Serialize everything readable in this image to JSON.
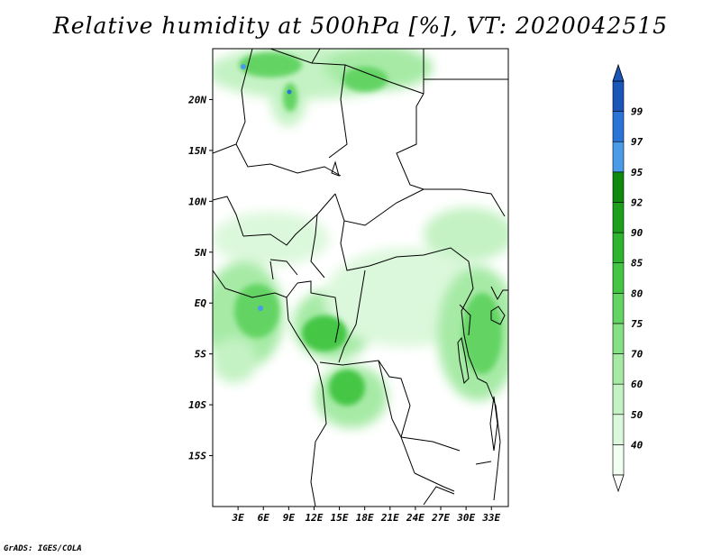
{
  "title": "Relative humidity at 500hPa [%], VT: 2020042515",
  "credit": "GrADS: IGES/COLA",
  "map": {
    "lon_range": [
      0,
      35
    ],
    "lat_range": [
      -20,
      25
    ],
    "lat_ticks": [
      {
        "value": 20,
        "label": "20N"
      },
      {
        "value": 15,
        "label": "15N"
      },
      {
        "value": 10,
        "label": "10N"
      },
      {
        "value": 5,
        "label": "5N"
      },
      {
        "value": 0,
        "label": "EQ"
      },
      {
        "value": -5,
        "label": "5S"
      },
      {
        "value": -10,
        "label": "10S"
      },
      {
        "value": -15,
        "label": "15S"
      }
    ],
    "lon_ticks": [
      {
        "value": 3,
        "label": "3E"
      },
      {
        "value": 6,
        "label": "6E"
      },
      {
        "value": 9,
        "label": "9E"
      },
      {
        "value": 12,
        "label": "12E"
      },
      {
        "value": 15,
        "label": "15E"
      },
      {
        "value": 18,
        "label": "18E"
      },
      {
        "value": 21,
        "label": "21E"
      },
      {
        "value": 24,
        "label": "24E"
      },
      {
        "value": 27,
        "label": "27E"
      },
      {
        "value": 30,
        "label": "30E"
      },
      {
        "value": 33,
        "label": "33E"
      }
    ]
  },
  "colorbar": {
    "levels": [
      "40",
      "50",
      "60",
      "70",
      "75",
      "80",
      "85",
      "90",
      "92",
      "95",
      "97",
      "99"
    ],
    "colors": [
      "#f0fff0",
      "#dcf8dc",
      "#c4f2c4",
      "#a6eaa6",
      "#86e086",
      "#64d464",
      "#44c644",
      "#2eb42e",
      "#1ca01c",
      "#0f8a0f",
      "#4a9ae8",
      "#2a74d8",
      "#1a56b8"
    ]
  }
}
